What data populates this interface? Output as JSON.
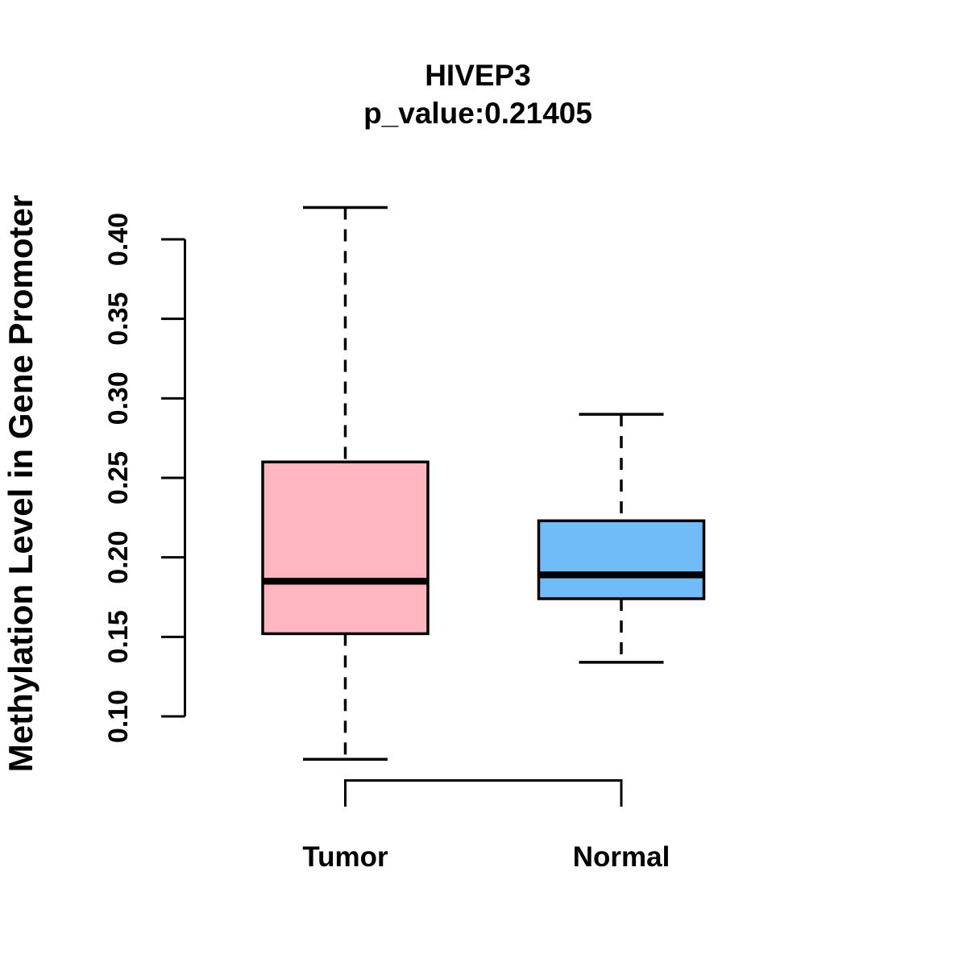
{
  "chart_data": {
    "type": "boxplot",
    "title": "HIVEP3",
    "subtitle": "p_value:0.21405",
    "ylabel": "Methylation Level in Gene Promoter",
    "xlabel": "",
    "categories": [
      "Tumor",
      "Normal"
    ],
    "series": [
      {
        "name": "Tumor",
        "whisker_low": 0.073,
        "q1": 0.152,
        "median": 0.185,
        "q3": 0.26,
        "whisker_high": 0.42,
        "fill_color": "#FFB6C1"
      },
      {
        "name": "Normal",
        "whisker_low": 0.134,
        "q1": 0.174,
        "median": 0.189,
        "q3": 0.223,
        "whisker_high": 0.29,
        "fill_color": "#71BCF8"
      }
    ],
    "yticks": [
      "0.10",
      "0.15",
      "0.20",
      "0.25",
      "0.30",
      "0.35",
      "0.40"
    ],
    "ylim": [
      0.1,
      0.42
    ],
    "grid": false,
    "legend": "none",
    "whisker_line_style": "dashed",
    "axis_color": "#000000",
    "median_color": "#000000",
    "background_color": "#FFFFFF"
  }
}
